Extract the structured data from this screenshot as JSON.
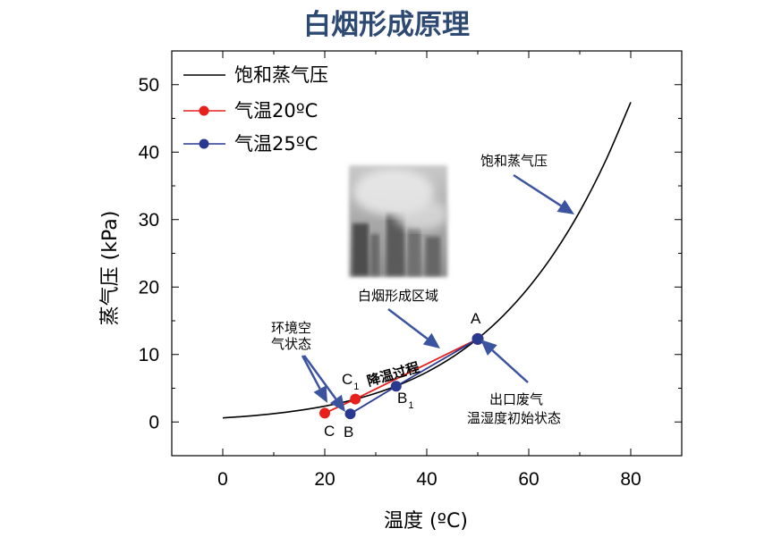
{
  "title": "白烟形成原理",
  "chart_data": {
    "type": "line",
    "xlabel": "温度 (ºC)",
    "ylabel": "蒸气压 (kPa)",
    "xlim": [
      -10,
      90
    ],
    "ylim": [
      -5,
      55
    ],
    "xticks": [
      0,
      20,
      40,
      60,
      80
    ],
    "yticks": [
      0,
      10,
      20,
      30,
      40,
      50
    ],
    "grid": false,
    "legend_position": "top-left",
    "legend": [
      "饱和蒸气压",
      "气温20ºC",
      "气温25ºC"
    ],
    "series": [
      {
        "name": "饱和蒸气压",
        "color": "#000000",
        "x": [
          0,
          5,
          10,
          15,
          20,
          25,
          30,
          35,
          40,
          45,
          50,
          55,
          60,
          65,
          70,
          75,
          80
        ],
        "y": [
          0.61,
          0.87,
          1.23,
          1.71,
          2.34,
          3.17,
          4.25,
          5.63,
          7.38,
          9.59,
          12.35,
          15.76,
          19.95,
          25.04,
          31.2,
          38.6,
          47.4
        ]
      },
      {
        "name": "气温20ºC",
        "color": "#e8201c",
        "points": [
          {
            "label": "C",
            "sub": "",
            "x": 20,
            "y": 1.3
          },
          {
            "label": "C",
            "sub": "1",
            "x": 26,
            "y": 3.4
          },
          {
            "label": "A",
            "sub": "",
            "x": 50,
            "y": 12.3
          }
        ]
      },
      {
        "name": "气温25ºC",
        "color": "#2a3990",
        "points": [
          {
            "label": "B",
            "sub": "",
            "x": 25,
            "y": 1.2
          },
          {
            "label": "B",
            "sub": "1",
            "x": 34,
            "y": 5.3
          },
          {
            "label": "A",
            "sub": "",
            "x": 50,
            "y": 12.3
          }
        ]
      }
    ],
    "annotations": [
      {
        "text": "饱和蒸气压",
        "x": 56.5,
        "y": 38.7
      },
      {
        "text": "白烟形成区域",
        "x": 36.5,
        "y": 18.3
      },
      {
        "lines": [
          "环境空",
          "气状态"
        ],
        "x": 19,
        "y": 13.2
      },
      {
        "lines": [
          "出口废气",
          "温湿度初始状态"
        ],
        "x": 57.5,
        "y": 2.3
      },
      {
        "text": "降温过程",
        "x": 39.5,
        "y": 6.5
      }
    ]
  }
}
